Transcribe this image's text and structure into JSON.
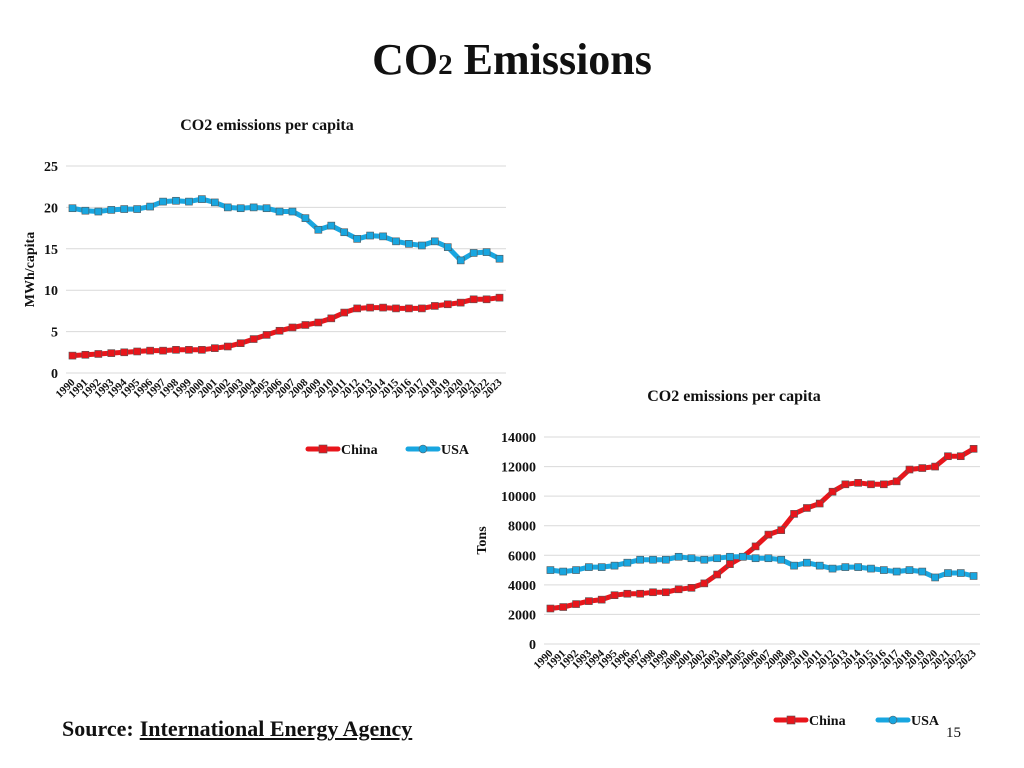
{
  "slide": {
    "title_prefix": "CO",
    "title_subscript": "2",
    "title_suffix": " Emissions",
    "source_label": "Source:",
    "source_link_text": "International Energy Agency",
    "page_number": "15"
  },
  "colors": {
    "china": "#e8151b",
    "usa": "#18a6e0",
    "grid": "#d9d9d9"
  },
  "chart_data": [
    {
      "type": "line",
      "title": "CO2 emissions per capita",
      "xlabel": "",
      "ylabel": "MWh/capita",
      "ylim": [
        0,
        25
      ],
      "yticks": [
        "0",
        "5",
        "10",
        "15",
        "20",
        "25"
      ],
      "grid": true,
      "legend": "bottom",
      "categories": [
        "1990",
        "1991",
        "1992",
        "1993",
        "1994",
        "1995",
        "1996",
        "1997",
        "1998",
        "1999",
        "2000",
        "2001",
        "2002",
        "2003",
        "2004",
        "2005",
        "2006",
        "2007",
        "2008",
        "2009",
        "2010",
        "2011",
        "2012",
        "2013",
        "2014",
        "2015",
        "2016",
        "2017",
        "2018",
        "2019",
        "2020",
        "2021",
        "2022",
        "2023"
      ],
      "series": [
        {
          "name": "China",
          "color": "#e8151b",
          "values": [
            2.1,
            2.2,
            2.3,
            2.4,
            2.5,
            2.6,
            2.7,
            2.7,
            2.8,
            2.8,
            2.8,
            3.0,
            3.2,
            3.6,
            4.1,
            4.6,
            5.1,
            5.5,
            5.8,
            6.1,
            6.6,
            7.3,
            7.8,
            7.9,
            7.9,
            7.8,
            7.8,
            7.8,
            8.1,
            8.3,
            8.5,
            8.9,
            8.9,
            9.1
          ]
        },
        {
          "name": "USA",
          "color": "#18a6e0",
          "values": [
            19.9,
            19.6,
            19.5,
            19.7,
            19.8,
            19.8,
            20.1,
            20.7,
            20.8,
            20.7,
            21.0,
            20.6,
            20.0,
            19.9,
            20.0,
            19.9,
            19.5,
            19.5,
            18.7,
            17.3,
            17.8,
            17.0,
            16.2,
            16.6,
            16.5,
            15.9,
            15.6,
            15.4,
            15.9,
            15.2,
            13.6,
            14.5,
            14.6,
            13.8
          ]
        }
      ]
    },
    {
      "type": "line",
      "title": "CO2 emissions per capita",
      "xlabel": "",
      "ylabel": "Tons",
      "ylim": [
        0,
        14000
      ],
      "yticks": [
        "0",
        "2000",
        "4000",
        "6000",
        "8000",
        "10000",
        "12000",
        "14000"
      ],
      "grid": true,
      "legend": "bottom",
      "categories": [
        "1990",
        "1991",
        "1992",
        "1993",
        "1994",
        "1995",
        "1996",
        "1997",
        "1998",
        "1999",
        "2000",
        "2001",
        "2002",
        "2003",
        "2004",
        "2005",
        "2006",
        "2007",
        "2008",
        "2009",
        "2010",
        "2011",
        "2012",
        "2013",
        "2014",
        "2015",
        "2016",
        "2017",
        "2018",
        "2019",
        "2020",
        "2021",
        "2022",
        "2023"
      ],
      "series": [
        {
          "name": "China",
          "color": "#e8151b",
          "values": [
            2400,
            2500,
            2700,
            2900,
            3000,
            3300,
            3400,
            3400,
            3500,
            3500,
            3700,
            3800,
            4100,
            4700,
            5400,
            5900,
            6600,
            7400,
            7700,
            8800,
            9200,
            9500,
            10300,
            10800,
            10900,
            10800,
            10800,
            11000,
            11800,
            11900,
            12000,
            12700,
            12700,
            13200
          ]
        },
        {
          "name": "USA",
          "color": "#18a6e0",
          "values": [
            5000,
            4900,
            5000,
            5200,
            5200,
            5300,
            5500,
            5700,
            5700,
            5700,
            5900,
            5800,
            5700,
            5800,
            5900,
            5900,
            5800,
            5800,
            5700,
            5300,
            5500,
            5300,
            5100,
            5200,
            5200,
            5100,
            5000,
            4900,
            5000,
            4900,
            4500,
            4800,
            4800,
            4600
          ]
        }
      ]
    }
  ]
}
